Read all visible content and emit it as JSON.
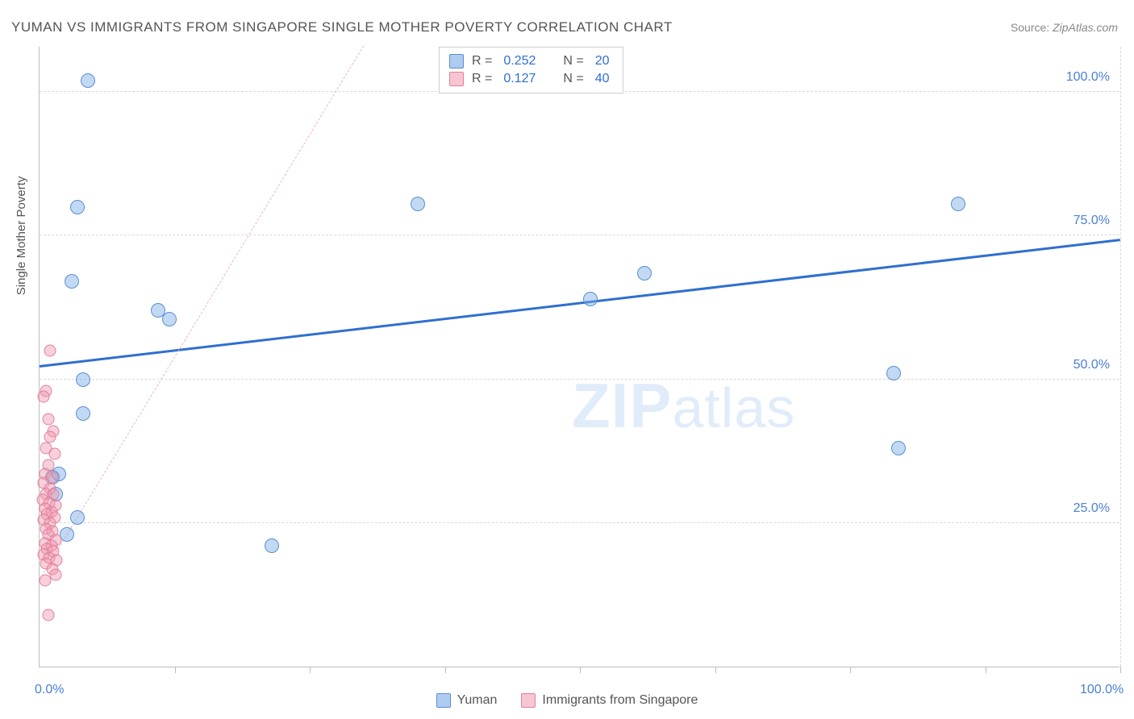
{
  "title": "YUMAN VS IMMIGRANTS FROM SINGAPORE SINGLE MOTHER POVERTY CORRELATION CHART",
  "source_label": "Source:",
  "source_value": "ZipAtlas.com",
  "ylabel": "Single Mother Poverty",
  "watermark_bold": "ZIP",
  "watermark_light": "atlas",
  "chart": {
    "type": "scatter",
    "xlim": [
      0,
      100
    ],
    "ylim": [
      0,
      108
    ],
    "x_ticks": [
      0,
      12.5,
      25,
      37.5,
      50,
      62.5,
      75,
      87.5,
      100
    ],
    "x_tick_grid": [
      12.5,
      25,
      37.5,
      50,
      62.5,
      75,
      87.5,
      100
    ],
    "x_labels": [
      {
        "v": 0,
        "t": "0.0%"
      },
      {
        "v": 100,
        "t": "100.0%"
      }
    ],
    "y_ticks": [
      25,
      50,
      75,
      100
    ],
    "y_labels": [
      {
        "v": 25,
        "t": "25.0%"
      },
      {
        "v": 50,
        "t": "50.0%"
      },
      {
        "v": 75,
        "t": "75.0%"
      },
      {
        "v": 100,
        "t": "100.0%"
      }
    ],
    "grid_color": "#d9d9d9",
    "axis_color": "#bdbdbd",
    "background_color": "#ffffff",
    "marker_radius_blue": 9,
    "marker_radius_pink": 7.5,
    "series": [
      {
        "name": "Yuman",
        "color_fill": "rgba(120,170,230,0.45)",
        "color_stroke": "#5b8ed1",
        "R": "0.252",
        "N": "20",
        "trend": {
          "x1": 0,
          "y1": 52,
          "x2": 100,
          "y2": 74,
          "color": "#2f6fd0",
          "width": 3,
          "dash": false
        },
        "points": [
          {
            "x": 4.5,
            "y": 102
          },
          {
            "x": 39.0,
            "y": 102
          },
          {
            "x": 3.5,
            "y": 80
          },
          {
            "x": 35.0,
            "y": 80.5
          },
          {
            "x": 85.0,
            "y": 80.5
          },
          {
            "x": 3.0,
            "y": 67
          },
          {
            "x": 11.0,
            "y": 62
          },
          {
            "x": 12.0,
            "y": 60.5
          },
          {
            "x": 51.0,
            "y": 64
          },
          {
            "x": 56.0,
            "y": 68.5
          },
          {
            "x": 79.0,
            "y": 51
          },
          {
            "x": 4.0,
            "y": 50
          },
          {
            "x": 4.0,
            "y": 44
          },
          {
            "x": 79.5,
            "y": 38
          },
          {
            "x": 1.2,
            "y": 33
          },
          {
            "x": 1.8,
            "y": 33.5
          },
          {
            "x": 3.5,
            "y": 26
          },
          {
            "x": 2.5,
            "y": 23
          },
          {
            "x": 21.5,
            "y": 21
          },
          {
            "x": 1.5,
            "y": 30
          }
        ]
      },
      {
        "name": "Immigrants from Singapore",
        "color_fill": "rgba(240,150,170,0.45)",
        "color_stroke": "#e080a0",
        "R": "0.127",
        "N": "40",
        "trend": {
          "x1": 0,
          "y1": 15,
          "x2": 30,
          "y2": 108,
          "color": "#f0b4c0",
          "width": 1.5,
          "dash": true
        },
        "points": [
          {
            "x": 1.0,
            "y": 55
          },
          {
            "x": 0.6,
            "y": 48
          },
          {
            "x": 0.4,
            "y": 47
          },
          {
            "x": 0.8,
            "y": 43
          },
          {
            "x": 1.3,
            "y": 41
          },
          {
            "x": 1.0,
            "y": 40
          },
          {
            "x": 0.6,
            "y": 38
          },
          {
            "x": 1.4,
            "y": 37
          },
          {
            "x": 0.8,
            "y": 35
          },
          {
            "x": 0.5,
            "y": 33.5
          },
          {
            "x": 1.2,
            "y": 33
          },
          {
            "x": 0.4,
            "y": 32
          },
          {
            "x": 1.0,
            "y": 31
          },
          {
            "x": 0.6,
            "y": 30
          },
          {
            "x": 1.3,
            "y": 30
          },
          {
            "x": 0.3,
            "y": 29
          },
          {
            "x": 0.9,
            "y": 28.5
          },
          {
            "x": 1.5,
            "y": 28
          },
          {
            "x": 0.5,
            "y": 27.5
          },
          {
            "x": 1.1,
            "y": 27
          },
          {
            "x": 0.7,
            "y": 26.5
          },
          {
            "x": 1.4,
            "y": 26
          },
          {
            "x": 0.4,
            "y": 25.5
          },
          {
            "x": 1.0,
            "y": 25
          },
          {
            "x": 0.6,
            "y": 24
          },
          {
            "x": 1.2,
            "y": 23.5
          },
          {
            "x": 0.8,
            "y": 23
          },
          {
            "x": 1.5,
            "y": 22
          },
          {
            "x": 0.5,
            "y": 21.5
          },
          {
            "x": 1.1,
            "y": 21
          },
          {
            "x": 0.7,
            "y": 20.5
          },
          {
            "x": 1.3,
            "y": 20
          },
          {
            "x": 0.4,
            "y": 19.5
          },
          {
            "x": 0.9,
            "y": 19
          },
          {
            "x": 1.6,
            "y": 18.5
          },
          {
            "x": 0.6,
            "y": 18
          },
          {
            "x": 1.2,
            "y": 17
          },
          {
            "x": 1.5,
            "y": 16
          },
          {
            "x": 0.5,
            "y": 15
          },
          {
            "x": 0.8,
            "y": 9
          }
        ]
      }
    ],
    "legend_top": {
      "R_label": "R =",
      "N_label": "N ="
    },
    "legend_bottom": [
      {
        "swatch": "blue",
        "label": "Yuman"
      },
      {
        "swatch": "pink",
        "label": "Immigrants from Singapore"
      }
    ]
  }
}
